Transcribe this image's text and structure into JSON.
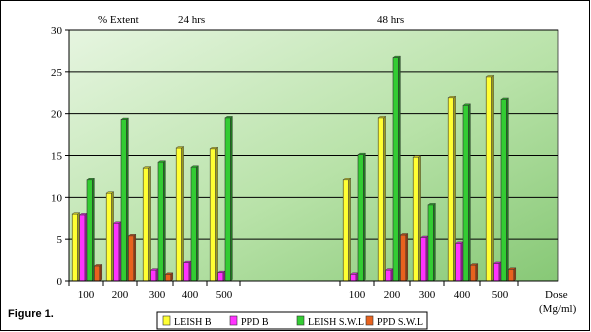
{
  "chart_data": {
    "type": "bar",
    "y_axis_title": "% Extent",
    "group_labels": [
      "24 hrs",
      "48 hrs"
    ],
    "x_axis_label": "Dose",
    "x_axis_unit": "(Mg/ml)",
    "figure_label": "Figure 1.",
    "ylim": [
      0,
      30
    ],
    "yticks": [
      "0",
      "5",
      "10",
      "15",
      "20",
      "25",
      "30"
    ],
    "grid": true,
    "legend_placement": "bottom",
    "categories": [
      "100",
      "200",
      "300",
      "400",
      "500",
      "100",
      "200",
      "300",
      "400",
      "500"
    ],
    "series": [
      {
        "name": "LEISH B",
        "color": "#FFFF33",
        "values": [
          8.0,
          10.5,
          13.5,
          15.9,
          15.8,
          12.1,
          19.5,
          14.8,
          21.9,
          24.4
        ]
      },
      {
        "name": "PPD B",
        "color": "#FF33FF",
        "values": [
          7.9,
          6.9,
          1.3,
          2.2,
          1.0,
          0.8,
          1.3,
          5.2,
          4.5,
          2.1
        ]
      },
      {
        "name": "LEISH S.W.L",
        "color": "#33CC33",
        "values": [
          12.1,
          19.3,
          14.2,
          13.6,
          19.5,
          15.1,
          26.7,
          9.1,
          21.0,
          21.7
        ]
      },
      {
        "name": "PPD S.W.L",
        "color": "#E8621E",
        "values": [
          1.8,
          5.4,
          0.8,
          0.0,
          0.0,
          0.0,
          5.5,
          0.0,
          1.9,
          1.4
        ]
      }
    ]
  }
}
